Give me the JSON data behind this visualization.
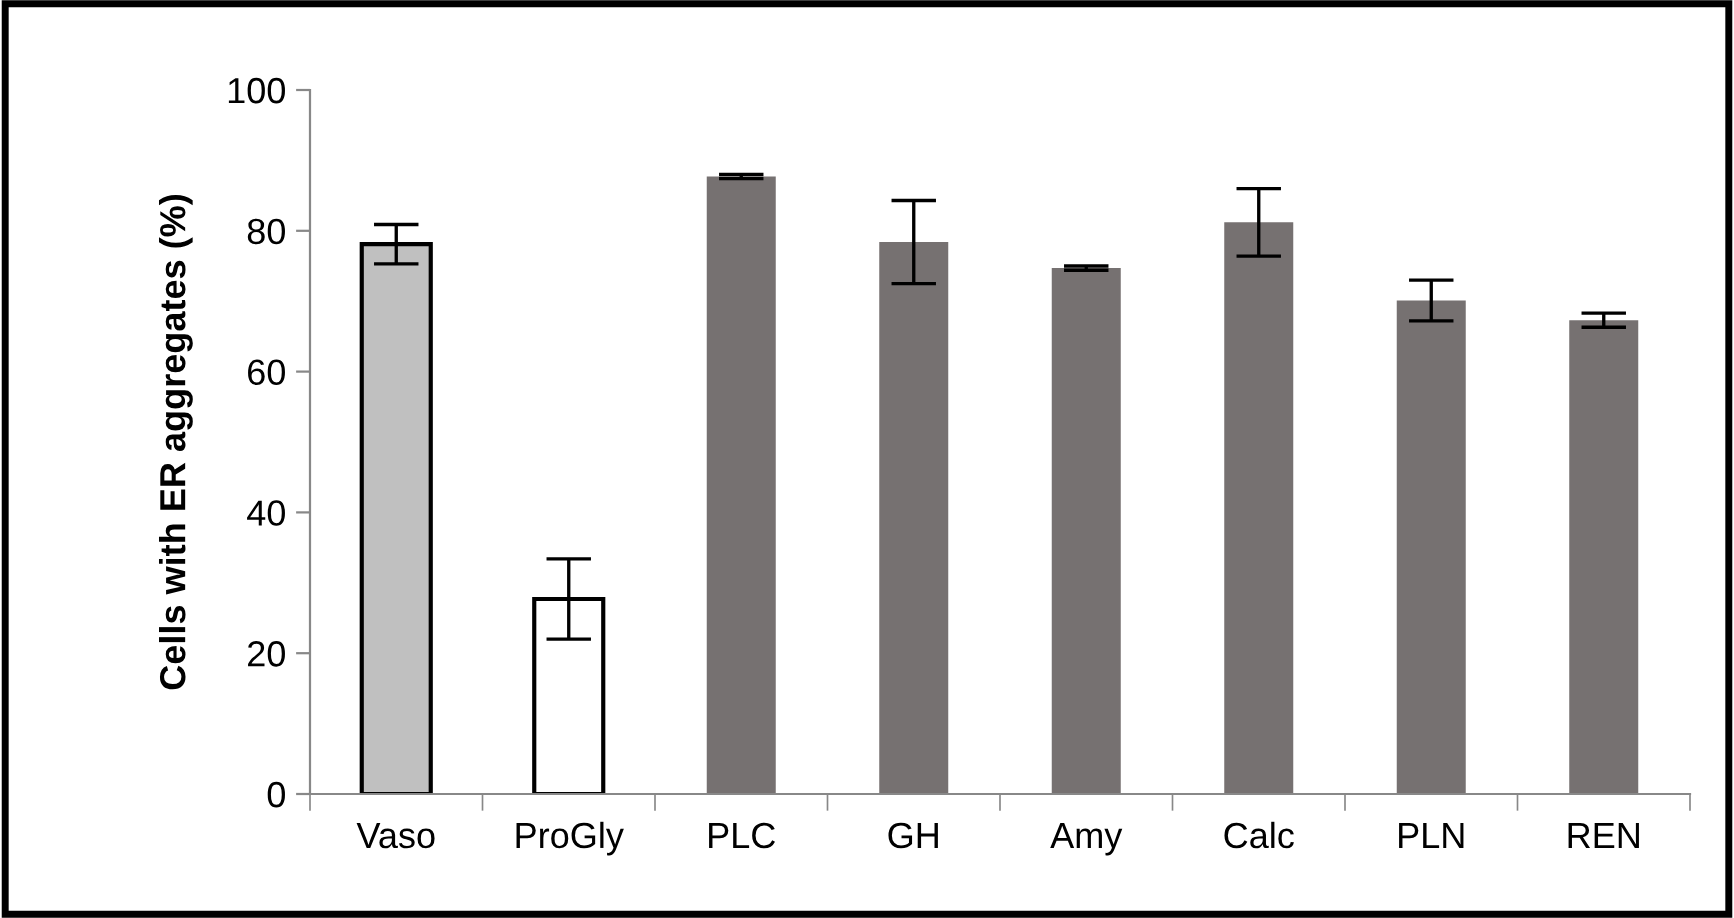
{
  "chart_data": {
    "type": "bar",
    "ylabel": "Cells with ER aggregates (%)",
    "categories": [
      "Vaso",
      "ProGly",
      "PLC",
      "GH",
      "Amy",
      "Calc",
      "PLN",
      "REN"
    ],
    "values": [
      78.1,
      27.7,
      87.7,
      78.4,
      74.7,
      81.2,
      70.1,
      67.3
    ],
    "errors": [
      2.8,
      5.7,
      0.3,
      5.9,
      0.3,
      4.8,
      2.9,
      1.0
    ],
    "colors": [
      "#c0c0c0",
      "#ffffff",
      "#767171",
      "#767171",
      "#767171",
      "#767171",
      "#767171",
      "#767171"
    ],
    "ylim": [
      0,
      100
    ],
    "yticks": [
      0,
      20,
      40,
      60,
      80,
      100
    ],
    "grid": false,
    "legend": false
  }
}
